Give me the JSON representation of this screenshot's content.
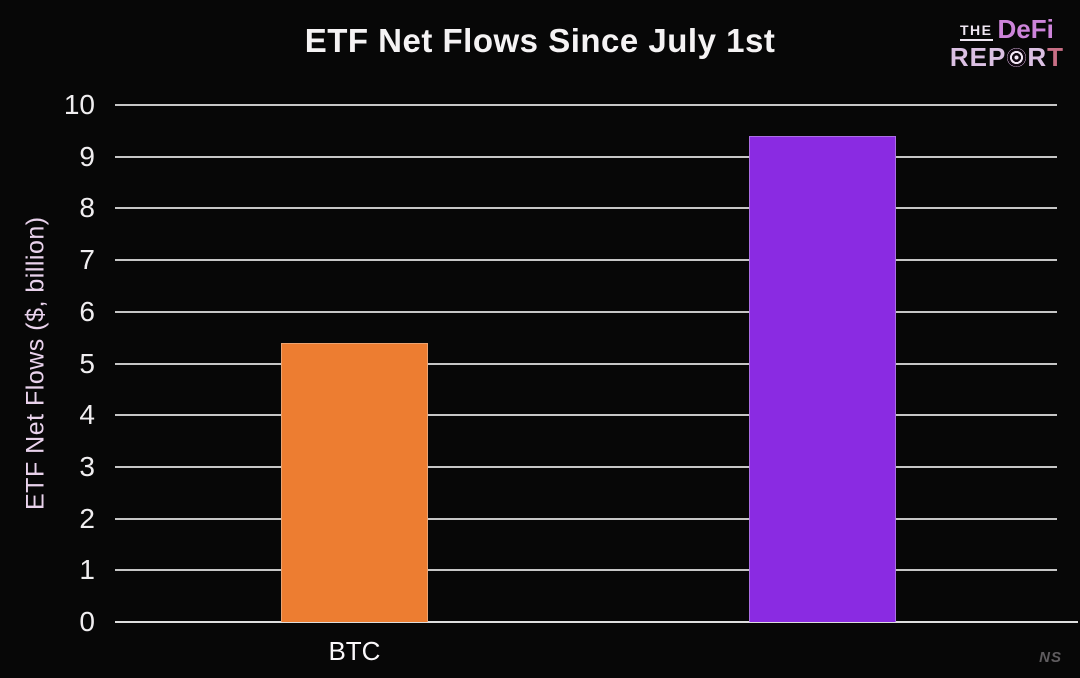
{
  "title": "ETF Net Flows Since July 1st",
  "logo": {
    "the": "THE",
    "defi": "DeFi",
    "rep": "REP",
    "r": "R",
    "t": "T"
  },
  "watermark": "NS",
  "colors": {
    "btc_bar": "#ED7D31",
    "second_bar": "#8A2BE2",
    "logo_pink": "#cd84da",
    "logo_lavender": "#dbc0e3",
    "background": "#070707",
    "gridline": "#c6c6c6"
  },
  "chart_data": {
    "type": "bar",
    "categories": [
      "BTC",
      ""
    ],
    "values": [
      5.4,
      9.4
    ],
    "bar_colors": [
      "#ED7D31",
      "#8A2BE2"
    ],
    "title": "ETF Net Flows Since July 1st",
    "xlabel": "",
    "ylabel": "ETF Net Flows ($, billion)",
    "ylim": [
      0,
      10
    ],
    "yticks": [
      0,
      1,
      2,
      3,
      4,
      5,
      6,
      7,
      8,
      9,
      10
    ],
    "grid": "horizontal-only",
    "legend": "none"
  }
}
